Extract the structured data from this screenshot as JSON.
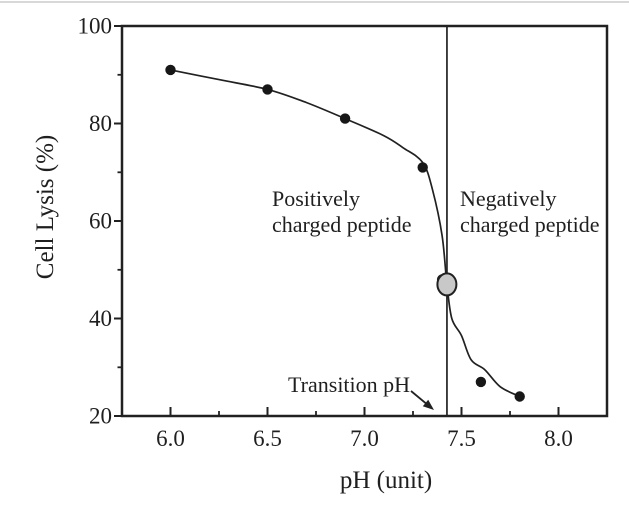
{
  "figure": {
    "description": "Cell lysis versus pH plot with marked transition pH"
  },
  "colors": {
    "background": "#ffffff",
    "ink": "#212121",
    "marker": "#171717",
    "transition_marker_fill": "#c8c8c8",
    "scan_edge_line": "#bdbdbd"
  },
  "chart_data": {
    "type": "scatter",
    "title": "",
    "xlabel": "pH (unit)",
    "ylabel": "Cell Lysis (%)",
    "xlim": [
      5.75,
      8.25
    ],
    "ylim": [
      20,
      100
    ],
    "grid": false,
    "legend": null,
    "x_major_ticks": [
      {
        "v": 6.0,
        "label": "6.0"
      },
      {
        "v": 6.5,
        "label": "6.5"
      },
      {
        "v": 7.0,
        "label": "7.0"
      },
      {
        "v": 7.5,
        "label": "7.5"
      },
      {
        "v": 8.0,
        "label": "8.0"
      }
    ],
    "x_minor_ticks": [
      6.25,
      6.75,
      7.25,
      7.75
    ],
    "y_major_ticks": [
      {
        "v": 20,
        "label": "20"
      },
      {
        "v": 40,
        "label": "40"
      },
      {
        "v": 60,
        "label": "60"
      },
      {
        "v": 80,
        "label": "80"
      },
      {
        "v": 100,
        "label": "100"
      }
    ],
    "y_minor_ticks": [
      30,
      50,
      70,
      90
    ],
    "points": [
      [
        6.0,
        91
      ],
      [
        6.5,
        87
      ],
      [
        6.9,
        81
      ],
      [
        7.3,
        71
      ],
      [
        7.4,
        48
      ],
      [
        7.6,
        27
      ],
      [
        7.8,
        24
      ]
    ],
    "fit_curve_samples": [
      [
        6.0,
        91
      ],
      [
        6.25,
        89
      ],
      [
        6.5,
        87
      ],
      [
        6.7,
        84.3
      ],
      [
        6.9,
        81
      ],
      [
        7.1,
        77.5
      ],
      [
        7.2,
        75
      ],
      [
        7.3,
        72
      ],
      [
        7.35,
        66.5
      ],
      [
        7.4,
        57
      ],
      [
        7.425,
        47
      ],
      [
        7.45,
        40
      ],
      [
        7.5,
        36.5
      ],
      [
        7.55,
        31.5
      ],
      [
        7.62,
        29.5
      ],
      [
        7.7,
        26
      ],
      [
        7.8,
        24
      ]
    ],
    "transition": {
      "line_x": 7.425,
      "marker": {
        "x": 7.425,
        "y": 47
      }
    },
    "annotations": [
      {
        "id": "positively-charged-region",
        "text": "Positively\ncharged peptide"
      },
      {
        "id": "negatively-charged-region",
        "text": "Negatively\ncharged peptide"
      },
      {
        "id": "transition-ph-label",
        "text": "Transition pH"
      }
    ]
  }
}
